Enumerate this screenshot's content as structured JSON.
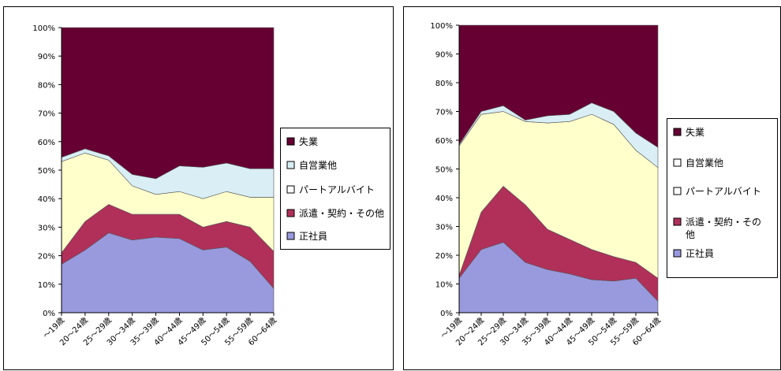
{
  "chart_data": [
    {
      "type": "area",
      "stacked": true,
      "percent": true,
      "categories": [
        "～19歳",
        "20～24歳",
        "25～29歳",
        "30～34歳",
        "35～39歳",
        "40～44歳",
        "45～49歳",
        "50～54歳",
        "55～59歳",
        "60～64歳"
      ],
      "ylim": [
        0,
        100
      ],
      "yticks": [
        "0%",
        "10%",
        "20%",
        "30%",
        "40%",
        "50%",
        "60%",
        "70%",
        "80%",
        "90%",
        "100%"
      ],
      "grid": false,
      "legend_position": "right",
      "series": [
        {
          "name": "正社員",
          "color": "#9999dd",
          "values": [
            17,
            22,
            28,
            25.5,
            26.5,
            26,
            22,
            23,
            18,
            8.5
          ]
        },
        {
          "name": "派遣・契約・その他",
          "color": "#b0305a",
          "values": [
            4,
            10,
            10,
            9,
            8,
            8.5,
            8,
            9,
            12,
            13
          ]
        },
        {
          "name": "パート・アルバイト",
          "color": "#ffffcc",
          "values": [
            32,
            24,
            15.5,
            10,
            7,
            8,
            10,
            10.5,
            10.5,
            19
          ]
        },
        {
          "name": "自営業他",
          "color": "#d9eef5",
          "values": [
            1.5,
            1.5,
            1.5,
            4,
            5.5,
            9,
            11,
            10,
            10,
            10
          ]
        },
        {
          "name": "失業",
          "color": "#660033",
          "values": [
            45.5,
            42.5,
            45,
            51.5,
            53,
            48.5,
            49,
            47.5,
            49.5,
            49.5
          ]
        }
      ]
    },
    {
      "type": "area",
      "stacked": true,
      "percent": true,
      "categories": [
        "～19歳",
        "20～24歳",
        "25～29歳",
        "30～34歳",
        "35～39歳",
        "40～44歳",
        "45～49歳",
        "50～54歳",
        "55～59歳",
        "60～64歳"
      ],
      "ylim": [
        0,
        100
      ],
      "yticks": [
        "0%",
        "10%",
        "20%",
        "30%",
        "40%",
        "50%",
        "60%",
        "70%",
        "80%",
        "90%",
        "100%"
      ],
      "grid": false,
      "legend_position": "right",
      "series": [
        {
          "name": "正社員",
          "color": "#9999dd",
          "values": [
            12,
            22,
            24.5,
            17.5,
            15,
            13.5,
            11.5,
            11,
            12,
            4
          ]
        },
        {
          "name": "派遣・契約・その他",
          "color": "#b0305a",
          "values": [
            1,
            13,
            19.5,
            20,
            14,
            12,
            10.5,
            8.5,
            5.5,
            8
          ]
        },
        {
          "name": "パート・アルバイト",
          "color": "#ffffcc",
          "values": [
            45,
            34,
            26,
            29,
            37,
            41,
            47,
            46,
            39,
            38.5
          ]
        },
        {
          "name": "自営業他",
          "color": "#d9eef5",
          "values": [
            0.5,
            1,
            2,
            0.5,
            2.5,
            2.5,
            4,
            4.5,
            6,
            7
          ]
        },
        {
          "name": "失業",
          "color": "#660033",
          "values": [
            41.5,
            30,
            28,
            33,
            31.5,
            31,
            27,
            30,
            37.5,
            42.5
          ]
        }
      ]
    }
  ],
  "legends": [
    {
      "items": [
        {
          "label": "失業",
          "swatch": "#660033"
        },
        {
          "label": "自営業他",
          "swatch": "#d9eef5"
        },
        {
          "label": "パートアルバイト",
          "swatch": "#ffffff"
        },
        {
          "label": "派遣・契約・その他",
          "swatch": "#b0305a"
        },
        {
          "label": "正社員",
          "swatch": "#9999dd"
        }
      ]
    },
    {
      "items": [
        {
          "label": "失業",
          "swatch": "#660033"
        },
        {
          "label": "自営業他",
          "swatch": "#ffffff"
        },
        {
          "label": "パートアルバイト",
          "swatch": "#ffffff"
        },
        {
          "label": "派遣・契約・その他",
          "label_line1": "派遣・契約・その",
          "label_line2": "他",
          "swatch": "#b0305a"
        },
        {
          "label": "正社員",
          "swatch": "#9999dd"
        }
      ]
    }
  ]
}
